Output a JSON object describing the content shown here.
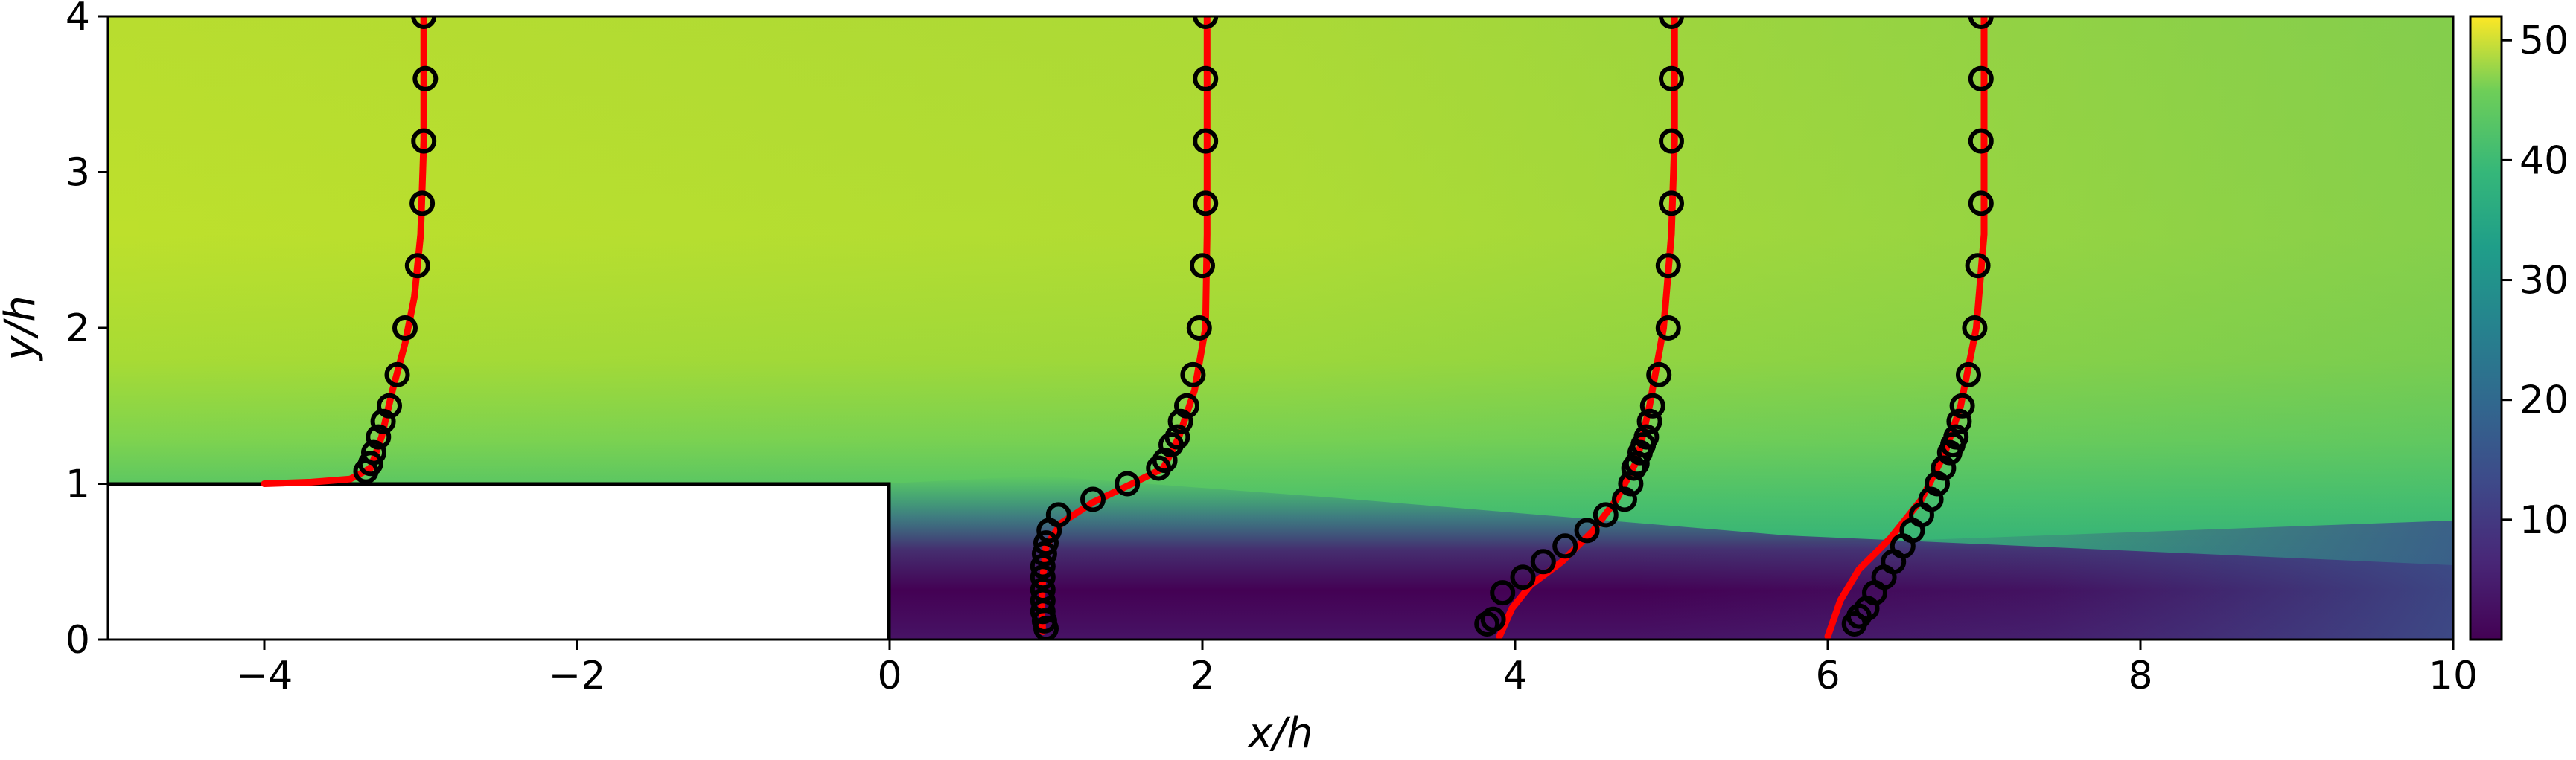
{
  "chart_data": {
    "type": "heatmap",
    "title": "",
    "xlabel": "x/h",
    "ylabel": "y/h",
    "xlim": [
      -5,
      10
    ],
    "ylim": [
      0,
      4
    ],
    "x_ticks": [
      {
        "value": -4,
        "label": "−4"
      },
      {
        "value": -2,
        "label": "−2"
      },
      {
        "value": 0,
        "label": "0"
      },
      {
        "value": 2,
        "label": "2"
      },
      {
        "value": 4,
        "label": "4"
      },
      {
        "value": 6,
        "label": "6"
      },
      {
        "value": 8,
        "label": "8"
      },
      {
        "value": 10,
        "label": "10"
      }
    ],
    "y_ticks": [
      {
        "value": 0,
        "label": "0"
      },
      {
        "value": 1,
        "label": "1"
      },
      {
        "value": 2,
        "label": "2"
      },
      {
        "value": 3,
        "label": "3"
      },
      {
        "value": 4,
        "label": "4"
      }
    ],
    "colormap": "viridis",
    "colorbar": {
      "range": [
        0,
        52
      ],
      "ticks": [
        {
          "value": 10,
          "label": "10"
        },
        {
          "value": 20,
          "label": "20"
        },
        {
          "value": 30,
          "label": "30"
        },
        {
          "value": 40,
          "label": "40"
        },
        {
          "value": 50,
          "label": "50"
        }
      ]
    },
    "step": {
      "x": [
        -5,
        0
      ],
      "y": [
        0,
        1
      ],
      "fill": "#ffffff"
    },
    "grid": false,
    "field_description_points": {
      "freestream_value": 46,
      "recirculation_value": 3
    },
    "profiles": [
      {
        "station": -3,
        "simulation_color": "#ff0000",
        "simulation": [
          [
            -4.0,
            1.0
          ],
          [
            -3.7,
            1.01
          ],
          [
            -3.45,
            1.03
          ],
          [
            -3.32,
            1.1
          ],
          [
            -3.25,
            1.3
          ],
          [
            -3.18,
            1.6
          ],
          [
            -3.1,
            1.9
          ],
          [
            -3.04,
            2.2
          ],
          [
            -3.0,
            2.6
          ],
          [
            -2.98,
            3.2
          ],
          [
            -2.98,
            4.0
          ]
        ],
        "experiment": [
          [
            -3.35,
            1.08
          ],
          [
            -3.32,
            1.13
          ],
          [
            -3.3,
            1.2
          ],
          [
            -3.27,
            1.3
          ],
          [
            -3.24,
            1.4
          ],
          [
            -3.2,
            1.5
          ],
          [
            -3.15,
            1.7
          ],
          [
            -3.1,
            2.0
          ],
          [
            -3.02,
            2.4
          ],
          [
            -2.99,
            2.8
          ],
          [
            -2.98,
            3.2
          ],
          [
            -2.97,
            3.6
          ],
          [
            -2.98,
            4.0
          ]
        ]
      },
      {
        "station": 1,
        "simulation_color": "#ff0000",
        "simulation": [
          [
            0.98,
            0.05
          ],
          [
            0.97,
            0.2
          ],
          [
            0.98,
            0.4
          ],
          [
            1.0,
            0.6
          ],
          [
            1.1,
            0.75
          ],
          [
            1.3,
            0.88
          ],
          [
            1.55,
            1.0
          ],
          [
            1.75,
            1.1
          ],
          [
            1.85,
            1.3
          ],
          [
            1.95,
            1.6
          ],
          [
            2.02,
            2.0
          ],
          [
            2.03,
            2.6
          ],
          [
            2.03,
            4.0
          ]
        ],
        "experiment": [
          [
            1.0,
            0.07
          ],
          [
            0.99,
            0.12
          ],
          [
            0.98,
            0.18
          ],
          [
            0.98,
            0.25
          ],
          [
            0.98,
            0.32
          ],
          [
            0.98,
            0.4
          ],
          [
            0.98,
            0.47
          ],
          [
            0.99,
            0.55
          ],
          [
            1.0,
            0.62
          ],
          [
            1.02,
            0.7
          ],
          [
            1.08,
            0.8
          ],
          [
            1.3,
            0.9
          ],
          [
            1.52,
            1.0
          ],
          [
            1.72,
            1.1
          ],
          [
            1.76,
            1.15
          ],
          [
            1.8,
            1.25
          ],
          [
            1.84,
            1.3
          ],
          [
            1.86,
            1.4
          ],
          [
            1.9,
            1.5
          ],
          [
            1.94,
            1.7
          ],
          [
            1.98,
            2.0
          ],
          [
            2.0,
            2.4
          ],
          [
            2.02,
            2.8
          ],
          [
            2.02,
            3.2
          ],
          [
            2.02,
            3.6
          ],
          [
            2.02,
            4.0
          ]
        ]
      },
      {
        "station": 4,
        "simulation_color": "#ff0000",
        "simulation": [
          [
            3.9,
            0.02
          ],
          [
            3.98,
            0.2
          ],
          [
            4.1,
            0.35
          ],
          [
            4.3,
            0.5
          ],
          [
            4.5,
            0.7
          ],
          [
            4.65,
            0.9
          ],
          [
            4.78,
            1.15
          ],
          [
            4.86,
            1.5
          ],
          [
            4.95,
            2.0
          ],
          [
            5.0,
            2.6
          ],
          [
            5.02,
            3.2
          ],
          [
            5.02,
            4.0
          ]
        ],
        "experiment": [
          [
            3.82,
            0.1
          ],
          [
            3.86,
            0.13
          ],
          [
            3.92,
            0.3
          ],
          [
            4.05,
            0.4
          ],
          [
            4.18,
            0.5
          ],
          [
            4.32,
            0.6
          ],
          [
            4.46,
            0.7
          ],
          [
            4.58,
            0.8
          ],
          [
            4.7,
            0.9
          ],
          [
            4.74,
            1.0
          ],
          [
            4.76,
            1.1
          ],
          [
            4.78,
            1.13
          ],
          [
            4.8,
            1.2
          ],
          [
            4.82,
            1.25
          ],
          [
            4.84,
            1.3
          ],
          [
            4.86,
            1.4
          ],
          [
            4.88,
            1.5
          ],
          [
            4.92,
            1.7
          ],
          [
            4.98,
            2.0
          ],
          [
            4.98,
            2.4
          ],
          [
            5.0,
            2.8
          ],
          [
            5.0,
            3.2
          ],
          [
            5.0,
            3.6
          ],
          [
            5.0,
            4.0
          ]
        ]
      },
      {
        "station": 6,
        "simulation_color": "#ff0000",
        "simulation": [
          [
            6.0,
            0.02
          ],
          [
            6.08,
            0.25
          ],
          [
            6.2,
            0.45
          ],
          [
            6.4,
            0.65
          ],
          [
            6.6,
            0.9
          ],
          [
            6.75,
            1.2
          ],
          [
            6.85,
            1.5
          ],
          [
            6.95,
            2.0
          ],
          [
            7.0,
            2.6
          ],
          [
            7.0,
            4.0
          ]
        ],
        "experiment": [
          [
            6.17,
            0.1
          ],
          [
            6.2,
            0.15
          ],
          [
            6.25,
            0.2
          ],
          [
            6.3,
            0.3
          ],
          [
            6.36,
            0.4
          ],
          [
            6.42,
            0.5
          ],
          [
            6.48,
            0.6
          ],
          [
            6.54,
            0.7
          ],
          [
            6.6,
            0.8
          ],
          [
            6.66,
            0.9
          ],
          [
            6.7,
            1.0
          ],
          [
            6.74,
            1.1
          ],
          [
            6.78,
            1.2
          ],
          [
            6.8,
            1.25
          ],
          [
            6.82,
            1.3
          ],
          [
            6.84,
            1.4
          ],
          [
            6.86,
            1.5
          ],
          [
            6.9,
            1.7
          ],
          [
            6.94,
            2.0
          ],
          [
            6.96,
            2.4
          ],
          [
            6.98,
            2.8
          ],
          [
            6.98,
            3.2
          ],
          [
            6.98,
            3.6
          ],
          [
            6.98,
            4.0
          ]
        ]
      }
    ]
  }
}
